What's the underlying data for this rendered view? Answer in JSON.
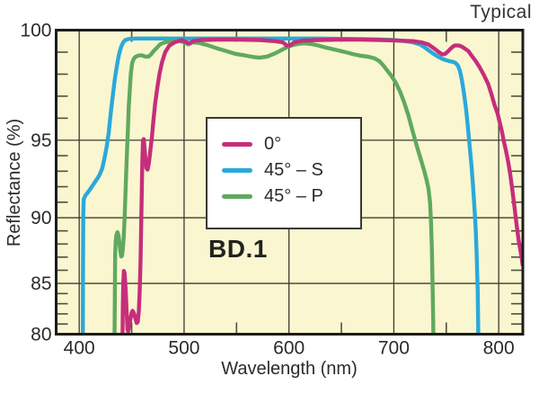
{
  "annotations": {
    "typical": "Typical",
    "chart_id": "BD.1"
  },
  "colors": {
    "plot_bg": "#FAF6D0",
    "grid": "#3c3c30",
    "minor_tick": "#50503e",
    "border": "#1c1c1a",
    "text": "#2b2b28",
    "pink": "#C52E7B",
    "blue": "#2AA9DA",
    "green": "#60A95F"
  },
  "chart_data": {
    "type": "line",
    "title": "Typical",
    "xlabel": "Wavelength (nm)",
    "ylabel": "Reflectance (%)",
    "xlim": [
      378,
      823
    ],
    "ylim": [
      80,
      100
    ],
    "x_gridlines": [
      400,
      500,
      600,
      700,
      800
    ],
    "x_major_ticks": [
      400,
      500,
      600,
      700,
      800
    ],
    "x_minor_ticks": [
      450,
      550,
      650,
      750
    ],
    "y_gridlines": [
      85,
      90,
      95
    ],
    "y_major_ticks": [
      80,
      85,
      90,
      95,
      100
    ],
    "y_minor_tick_step": 1,
    "y_axis_note": "nonlinear axis, compressed toward low reflectance",
    "y_scale_anchors": [
      [
        80,
        0
      ],
      [
        85,
        0.167
      ],
      [
        90,
        0.383
      ],
      [
        95,
        0.638
      ],
      [
        100,
        1
      ]
    ],
    "legend_position": "center",
    "series": [
      {
        "name": "0°",
        "color_key": "pink",
        "points": [
          [
            441.3,
            79.5
          ],
          [
            441.6,
            82.5
          ],
          [
            442,
            85.0
          ],
          [
            442.6,
            85.95
          ],
          [
            443.3,
            85.8
          ],
          [
            444.2,
            84.5
          ],
          [
            445.2,
            82.2
          ],
          [
            446,
            80.5
          ],
          [
            446.6,
            80.25
          ],
          [
            447.4,
            80.6
          ],
          [
            448.5,
            81.3
          ],
          [
            449.8,
            82.0
          ],
          [
            450.8,
            82.3
          ],
          [
            452,
            82.1
          ],
          [
            453.5,
            81.6
          ],
          [
            454.8,
            81.1
          ],
          [
            455.8,
            81.2
          ],
          [
            456.8,
            82.2
          ],
          [
            457.6,
            84.0
          ],
          [
            458.4,
            86.5
          ],
          [
            459.1,
            89.5
          ],
          [
            459.7,
            92.0
          ],
          [
            460.2,
            93.8
          ],
          [
            460.8,
            95.0
          ],
          [
            461.5,
            95.05
          ],
          [
            462.3,
            94.5
          ],
          [
            463.2,
            93.7
          ],
          [
            464.2,
            93.2
          ],
          [
            465.2,
            93.1
          ],
          [
            466.4,
            93.5
          ],
          [
            467.8,
            94.3
          ],
          [
            469.2,
            95.1
          ],
          [
            470.8,
            95.9
          ],
          [
            472.5,
            96.7
          ],
          [
            474.5,
            97.4
          ],
          [
            476.5,
            98.0
          ],
          [
            479,
            98.55
          ],
          [
            482,
            99.0
          ],
          [
            486,
            99.3
          ],
          [
            491,
            99.45
          ],
          [
            498,
            99.55
          ],
          [
            502,
            99.45
          ],
          [
            505,
            99.4
          ],
          [
            509,
            99.5
          ],
          [
            516,
            99.55
          ],
          [
            532,
            99.57
          ],
          [
            552,
            99.57
          ],
          [
            572,
            99.55
          ],
          [
            586,
            99.5
          ],
          [
            594,
            99.45
          ],
          [
            598,
            99.3
          ],
          [
            601,
            99.3
          ],
          [
            605,
            99.45
          ],
          [
            613,
            99.52
          ],
          [
            628,
            99.55
          ],
          [
            648,
            99.57
          ],
          [
            668,
            99.57
          ],
          [
            688,
            99.55
          ],
          [
            706,
            99.52
          ],
          [
            718,
            99.5
          ],
          [
            726,
            99.45
          ],
          [
            733,
            99.35
          ],
          [
            739,
            99.15
          ],
          [
            743,
            99.0
          ],
          [
            746,
            98.9
          ],
          [
            749,
            98.92
          ],
          [
            752,
            99.05
          ],
          [
            755,
            99.2
          ],
          [
            758,
            99.3
          ],
          [
            762,
            99.3
          ],
          [
            765,
            99.25
          ],
          [
            768,
            99.15
          ],
          [
            771,
            99.05
          ],
          [
            774,
            98.85
          ],
          [
            778,
            98.6
          ],
          [
            782,
            98.3
          ],
          [
            786,
            97.95
          ],
          [
            790,
            97.55
          ],
          [
            793,
            97.1
          ],
          [
            796,
            96.6
          ],
          [
            799,
            96.2
          ],
          [
            801,
            95.8
          ],
          [
            803,
            95.4
          ],
          [
            805,
            94.9
          ],
          [
            807,
            94.3
          ],
          [
            809,
            93.6
          ],
          [
            811,
            92.8
          ],
          [
            813,
            91.8
          ],
          [
            815,
            90.7
          ],
          [
            817,
            89.5
          ],
          [
            819,
            88.3
          ],
          [
            820.5,
            87.6
          ],
          [
            822,
            86.9
          ],
          [
            822.8,
            86.4
          ]
        ]
      },
      {
        "name": "45° – S",
        "color_key": "blue",
        "points": [
          [
            403.4,
            79.5
          ],
          [
            403.6,
            86
          ],
          [
            403.9,
            90.2
          ],
          [
            404.3,
            91.2
          ],
          [
            406,
            91.45
          ],
          [
            409,
            91.7
          ],
          [
            412,
            92.0
          ],
          [
            415,
            92.3
          ],
          [
            418,
            92.6
          ],
          [
            420,
            92.85
          ],
          [
            422,
            93.2
          ],
          [
            424,
            93.8
          ],
          [
            426,
            94.5
          ],
          [
            428,
            95.3
          ],
          [
            430,
            96.2
          ],
          [
            432,
            97.0
          ],
          [
            434,
            97.8
          ],
          [
            436,
            98.4
          ],
          [
            438,
            98.9
          ],
          [
            440,
            99.25
          ],
          [
            442,
            99.45
          ],
          [
            444,
            99.55
          ],
          [
            447,
            99.6
          ],
          [
            455,
            99.62
          ],
          [
            480,
            99.62
          ],
          [
            510,
            99.62
          ],
          [
            540,
            99.62
          ],
          [
            570,
            99.62
          ],
          [
            600,
            99.62
          ],
          [
            630,
            99.62
          ],
          [
            660,
            99.6
          ],
          [
            685,
            99.58
          ],
          [
            700,
            99.55
          ],
          [
            710,
            99.5
          ],
          [
            718,
            99.45
          ],
          [
            725,
            99.35
          ],
          [
            730,
            99.2
          ],
          [
            734,
            99.05
          ],
          [
            738,
            98.92
          ],
          [
            742,
            98.8
          ],
          [
            746,
            98.7
          ],
          [
            750,
            98.63
          ],
          [
            754,
            98.58
          ],
          [
            757,
            98.55
          ],
          [
            759,
            98.5
          ],
          [
            761,
            98.4
          ],
          [
            763,
            98.15
          ],
          [
            765,
            97.7
          ],
          [
            767,
            97.1
          ],
          [
            769,
            96.35
          ],
          [
            771,
            95.4
          ],
          [
            772.5,
            94.5
          ],
          [
            774,
            93.4
          ],
          [
            775.5,
            92.1
          ],
          [
            777,
            90.5
          ],
          [
            778,
            89.2
          ],
          [
            779,
            87.2
          ],
          [
            780,
            84.2
          ],
          [
            780.6,
            79.5
          ]
        ]
      },
      {
        "name": "45° – P",
        "color_key": "green",
        "points": [
          [
            433.7,
            79.5
          ],
          [
            434,
            84.5
          ],
          [
            434.3,
            87.2
          ],
          [
            434.8,
            88.2
          ],
          [
            435.5,
            88.7
          ],
          [
            436.5,
            88.9
          ],
          [
            437.5,
            88.6
          ],
          [
            438.5,
            88.0
          ],
          [
            439.3,
            87.4
          ],
          [
            440,
            87.05
          ],
          [
            440.8,
            87.1
          ],
          [
            441.6,
            87.6
          ],
          [
            442.4,
            88.5
          ],
          [
            443.2,
            89.8
          ],
          [
            444,
            91.3
          ],
          [
            444.8,
            92.9
          ],
          [
            445.6,
            94.3
          ],
          [
            446.4,
            95.5
          ],
          [
            447.2,
            96.5
          ],
          [
            448.2,
            97.3
          ],
          [
            449.2,
            98.0
          ],
          [
            450.5,
            98.5
          ],
          [
            452,
            98.7
          ],
          [
            454,
            98.8
          ],
          [
            457,
            98.85
          ],
          [
            460,
            98.85
          ],
          [
            463,
            98.8
          ],
          [
            466,
            98.8
          ],
          [
            468.5,
            98.9
          ],
          [
            471,
            99.05
          ],
          [
            474,
            99.2
          ],
          [
            477,
            99.35
          ],
          [
            480,
            99.42
          ],
          [
            485,
            99.48
          ],
          [
            490,
            99.5
          ],
          [
            496,
            99.5
          ],
          [
            500,
            99.45
          ],
          [
            504,
            99.35
          ],
          [
            508,
            99.45
          ],
          [
            514,
            99.42
          ],
          [
            522,
            99.32
          ],
          [
            531,
            99.18
          ],
          [
            540,
            99.05
          ],
          [
            549,
            98.92
          ],
          [
            558,
            98.85
          ],
          [
            566,
            98.78
          ],
          [
            572,
            98.75
          ],
          [
            579,
            98.8
          ],
          [
            587,
            98.95
          ],
          [
            595,
            99.15
          ],
          [
            602,
            99.3
          ],
          [
            609,
            99.38
          ],
          [
            615,
            99.4
          ],
          [
            621,
            99.37
          ],
          [
            628,
            99.3
          ],
          [
            636,
            99.2
          ],
          [
            645,
            99.1
          ],
          [
            654,
            99.0
          ],
          [
            662,
            98.9
          ],
          [
            669,
            98.83
          ],
          [
            675,
            98.8
          ],
          [
            681,
            98.73
          ],
          [
            686,
            98.6
          ],
          [
            690,
            98.4
          ],
          [
            694,
            98.15
          ],
          [
            698,
            97.9
          ],
          [
            702,
            97.6
          ],
          [
            706,
            97.2
          ],
          [
            710,
            96.7
          ],
          [
            714,
            96.1
          ],
          [
            718,
            95.4
          ],
          [
            722,
            94.6
          ],
          [
            726,
            93.7
          ],
          [
            729,
            93.0
          ],
          [
            731,
            92.5
          ],
          [
            733,
            91.9
          ],
          [
            734.5,
            91.0
          ],
          [
            735.5,
            89.5
          ],
          [
            736.3,
            87.5
          ],
          [
            737,
            84.5
          ],
          [
            737.5,
            81.5
          ],
          [
            737.8,
            79.5
          ]
        ]
      }
    ]
  }
}
